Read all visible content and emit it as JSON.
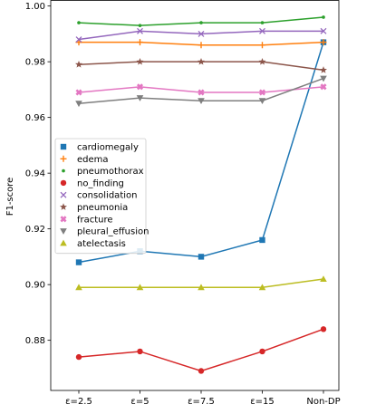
{
  "chart_data": {
    "type": "line",
    "title": "",
    "xlabel": "",
    "ylabel": "F1-score",
    "categories": [
      "ε=2.5",
      "ε=5",
      "ε=7.5",
      "ε=15",
      "Non-DP"
    ],
    "ylim": [
      0.862,
      1.002
    ],
    "yticks": [
      0.88,
      0.9,
      0.92,
      0.94,
      0.96,
      0.98,
      1.0
    ],
    "ytick_labels": [
      "0.88",
      "0.90",
      "0.92",
      "0.94",
      "0.96",
      "0.98",
      "1.00"
    ],
    "grid": false,
    "legend_position": "center-left",
    "series": [
      {
        "name": "cardiomegaly",
        "color": "#1f77b4",
        "marker": "square",
        "values": [
          0.908,
          0.912,
          0.91,
          0.916,
          0.987
        ]
      },
      {
        "name": "edema",
        "color": "#ff7f0e",
        "marker": "plus",
        "values": [
          0.987,
          0.987,
          0.986,
          0.986,
          0.987
        ]
      },
      {
        "name": "pneumothorax",
        "color": "#2ca02c",
        "marker": "point",
        "values": [
          0.994,
          0.993,
          0.994,
          0.994,
          0.996
        ]
      },
      {
        "name": "no_finding",
        "color": "#d62728",
        "marker": "circle",
        "values": [
          0.874,
          0.876,
          0.869,
          0.876,
          0.884
        ]
      },
      {
        "name": "consolidation",
        "color": "#9467bd",
        "marker": "x",
        "values": [
          0.988,
          0.991,
          0.99,
          0.991,
          0.991
        ]
      },
      {
        "name": "pneumonia",
        "color": "#8c564b",
        "marker": "star",
        "values": [
          0.979,
          0.98,
          0.98,
          0.98,
          0.977
        ]
      },
      {
        "name": "fracture",
        "color": "#e377c2",
        "marker": "x-thick",
        "values": [
          0.969,
          0.971,
          0.969,
          0.969,
          0.971
        ]
      },
      {
        "name": "pleural_effusion",
        "color": "#7f7f7f",
        "marker": "triangle-down",
        "values": [
          0.965,
          0.967,
          0.966,
          0.966,
          0.974
        ]
      },
      {
        "name": "atelectasis",
        "color": "#bcbd22",
        "marker": "triangle-up",
        "values": [
          0.899,
          0.899,
          0.899,
          0.899,
          0.902
        ]
      }
    ]
  }
}
